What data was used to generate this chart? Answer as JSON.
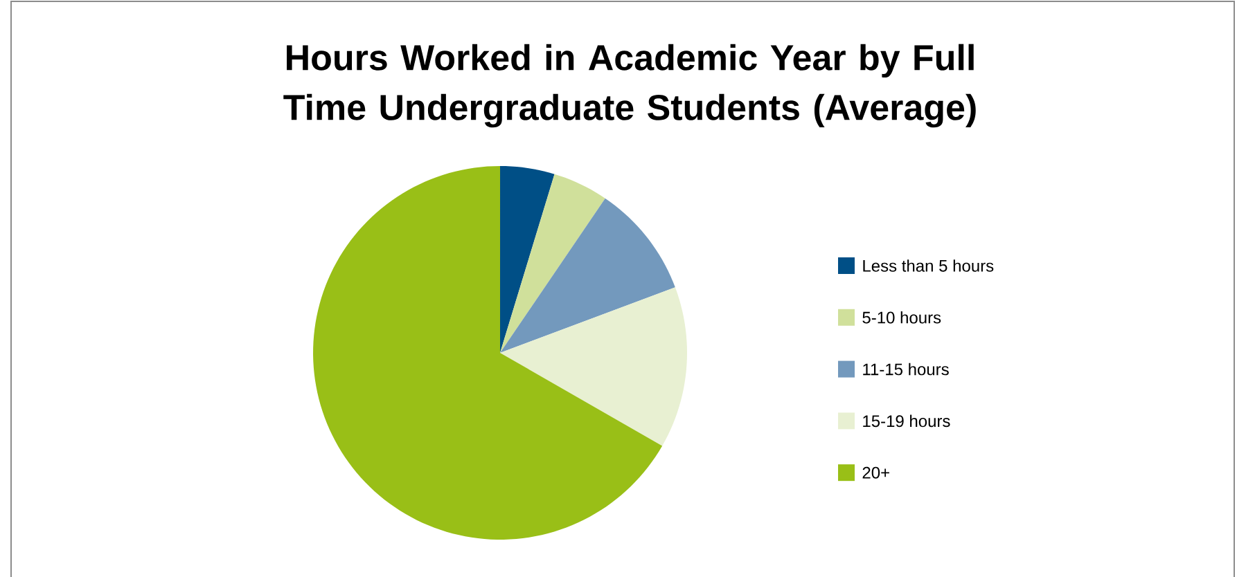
{
  "chart_data": {
    "type": "pie",
    "title": "Hours Worked in Academic Year by Full Time Undergraduate Students (Average)",
    "categories": [
      "Less than 5 hours",
      "5-10 hours",
      "11-15 hours",
      "15-19 hours",
      "20+"
    ],
    "values": [
      4.7,
      4.8,
      9.8,
      14,
      66.7
    ],
    "colors": [
      "#004f86",
      "#d0e09b",
      "#7399bd",
      "#e8f0d2",
      "#99bf17"
    ],
    "legend": "right"
  }
}
